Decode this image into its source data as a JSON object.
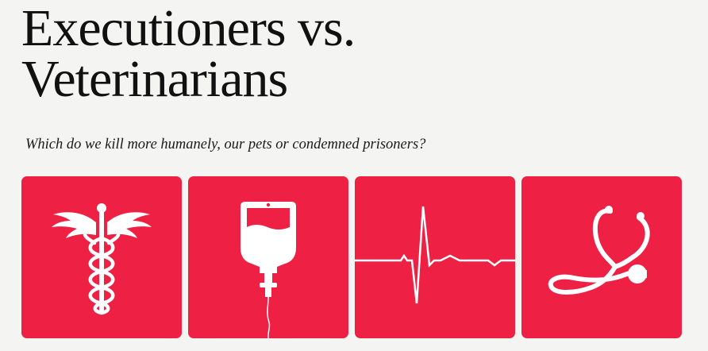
{
  "header": {
    "title_line1": "Executioners vs.",
    "title_line2": "Veterinarians",
    "subtitle": "Which do we kill more humanely, our pets or condemned prisoners?"
  },
  "tiles": [
    {
      "icon": "caduceus-icon"
    },
    {
      "icon": "iv-bag-icon"
    },
    {
      "icon": "heartbeat-icon"
    },
    {
      "icon": "stethoscope-icon"
    }
  ],
  "colors": {
    "background": "#f4f4f2",
    "tile": "#ee2144",
    "icon": "#ffffff",
    "text": "#111111"
  }
}
